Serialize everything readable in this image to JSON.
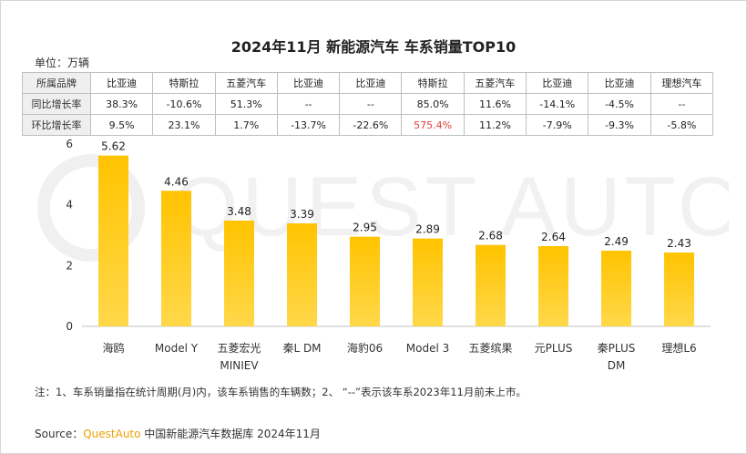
{
  "title": "2024年11月  新能源汽车 车系销量TOP10",
  "unit": "单位：万辆",
  "table": {
    "rows": [
      {
        "header": "所属品牌",
        "cells": [
          "比亚迪",
          "特斯拉",
          "五菱汽车",
          "比亚迪",
          "比亚迪",
          "特斯拉",
          "五菱汽车",
          "比亚迪",
          "比亚迪",
          "理想汽车"
        ]
      },
      {
        "header": "同比增长率",
        "cells": [
          "38.3%",
          "-10.6%",
          "51.3%",
          "--",
          "--",
          "85.0%",
          "11.6%",
          "-14.1%",
          "-4.5%",
          "--"
        ]
      },
      {
        "header": "环比增长率",
        "cells": [
          "9.5%",
          "23.1%",
          "1.7%",
          "-13.7%",
          "-22.6%",
          "575.4%",
          "11.2%",
          "-7.9%",
          "-9.3%",
          "-5.8%"
        ]
      }
    ],
    "highlight_color": "#e0403a"
  },
  "chart_data": {
    "type": "bar",
    "categories": [
      "海鸥",
      "Model Y",
      "五菱宏光\nMINIEV",
      "秦L DM",
      "海豹06",
      "Model 3",
      "五菱缤果",
      "元PLUS",
      "秦PLUS\nDM",
      "理想L6"
    ],
    "values": [
      5.62,
      4.46,
      3.48,
      3.39,
      2.95,
      2.89,
      2.68,
      2.64,
      2.49,
      2.43
    ],
    "value_labels": [
      "5.62",
      "4.46",
      "3.48",
      "3.39",
      "2.95",
      "2.89",
      "2.68",
      "2.64",
      "2.49",
      "2.43"
    ],
    "yticks": [
      "0",
      "2",
      "4",
      "6"
    ],
    "ylim": [
      0,
      6
    ],
    "grid": false,
    "bar_color_top": "#ffc300",
    "bar_color_bottom": "#ffd84a"
  },
  "watermark": "QUEST AUTO",
  "note": "注：1、车系销量指在统计周期(月)内，该车系销售的车辆数；2、 “--”表示该车系2023年11月前未上市。",
  "source": {
    "prefix": "Source：",
    "brand": "QuestAuto",
    "text": " 中国新能源汽车数据库 2024年11月"
  }
}
